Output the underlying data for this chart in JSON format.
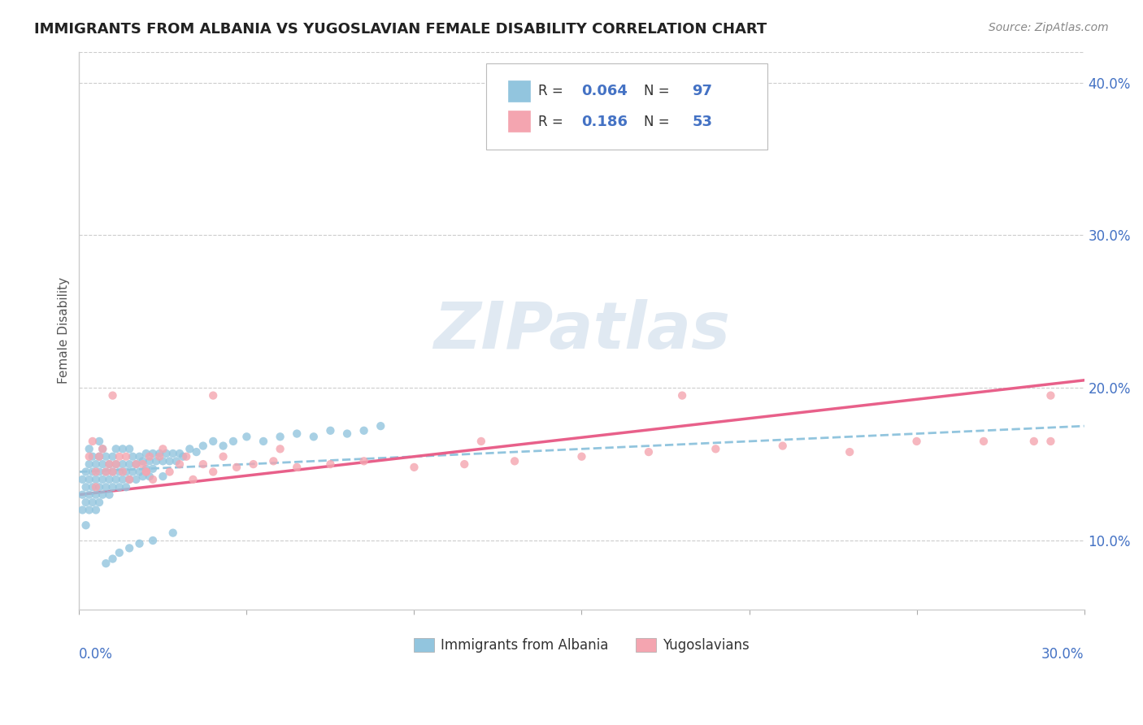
{
  "title": "IMMIGRANTS FROM ALBANIA VS YUGOSLAVIAN FEMALE DISABILITY CORRELATION CHART",
  "source": "Source: ZipAtlas.com",
  "ylabel": "Female Disability",
  "legend_label1": "Immigrants from Albania",
  "legend_label2": "Yugoslavians",
  "r1": 0.064,
  "n1": 97,
  "r2": 0.186,
  "n2": 53,
  "color1": "#92C5DE",
  "color2": "#F4A5B0",
  "trendline_color1": "#92C5DE",
  "trendline_color2": "#E8608A",
  "watermark": "ZIPatlas",
  "xlim": [
    0.0,
    0.3
  ],
  "ylim": [
    0.055,
    0.42
  ],
  "yticks": [
    0.1,
    0.2,
    0.3,
    0.4
  ],
  "ytick_labels": [
    "10.0%",
    "20.0%",
    "30.0%",
    "40.0%"
  ],
  "albania_x": [
    0.001,
    0.001,
    0.001,
    0.002,
    0.002,
    0.002,
    0.002,
    0.003,
    0.003,
    0.003,
    0.003,
    0.003,
    0.004,
    0.004,
    0.004,
    0.004,
    0.005,
    0.005,
    0.005,
    0.005,
    0.006,
    0.006,
    0.006,
    0.006,
    0.006,
    0.007,
    0.007,
    0.007,
    0.007,
    0.008,
    0.008,
    0.008,
    0.009,
    0.009,
    0.009,
    0.01,
    0.01,
    0.01,
    0.011,
    0.011,
    0.011,
    0.012,
    0.012,
    0.013,
    0.013,
    0.013,
    0.014,
    0.014,
    0.015,
    0.015,
    0.015,
    0.016,
    0.016,
    0.017,
    0.017,
    0.018,
    0.018,
    0.019,
    0.019,
    0.02,
    0.02,
    0.021,
    0.021,
    0.022,
    0.022,
    0.023,
    0.024,
    0.025,
    0.025,
    0.026,
    0.027,
    0.028,
    0.029,
    0.03,
    0.031,
    0.033,
    0.035,
    0.037,
    0.04,
    0.043,
    0.046,
    0.05,
    0.055,
    0.06,
    0.065,
    0.07,
    0.075,
    0.08,
    0.085,
    0.09,
    0.008,
    0.01,
    0.012,
    0.015,
    0.018,
    0.022,
    0.028
  ],
  "albania_y": [
    0.13,
    0.12,
    0.14,
    0.135,
    0.125,
    0.145,
    0.11,
    0.14,
    0.13,
    0.15,
    0.12,
    0.16,
    0.135,
    0.145,
    0.125,
    0.155,
    0.14,
    0.13,
    0.15,
    0.12,
    0.145,
    0.135,
    0.155,
    0.125,
    0.165,
    0.14,
    0.15,
    0.13,
    0.16,
    0.145,
    0.135,
    0.155,
    0.14,
    0.15,
    0.13,
    0.145,
    0.155,
    0.135,
    0.15,
    0.14,
    0.16,
    0.145,
    0.135,
    0.15,
    0.14,
    0.16,
    0.145,
    0.135,
    0.15,
    0.14,
    0.16,
    0.145,
    0.155,
    0.15,
    0.14,
    0.155,
    0.145,
    0.152,
    0.142,
    0.157,
    0.147,
    0.152,
    0.142,
    0.157,
    0.147,
    0.152,
    0.157,
    0.152,
    0.142,
    0.157,
    0.152,
    0.157,
    0.152,
    0.157,
    0.155,
    0.16,
    0.158,
    0.162,
    0.165,
    0.162,
    0.165,
    0.168,
    0.165,
    0.168,
    0.17,
    0.168,
    0.172,
    0.17,
    0.172,
    0.175,
    0.085,
    0.088,
    0.092,
    0.095,
    0.098,
    0.1,
    0.105
  ],
  "yugo_x": [
    0.003,
    0.004,
    0.005,
    0.005,
    0.006,
    0.007,
    0.008,
    0.009,
    0.01,
    0.011,
    0.012,
    0.013,
    0.014,
    0.015,
    0.017,
    0.019,
    0.02,
    0.021,
    0.022,
    0.024,
    0.025,
    0.027,
    0.03,
    0.032,
    0.034,
    0.037,
    0.04,
    0.043,
    0.047,
    0.052,
    0.058,
    0.065,
    0.075,
    0.085,
    0.1,
    0.115,
    0.13,
    0.15,
    0.17,
    0.19,
    0.21,
    0.23,
    0.25,
    0.27,
    0.285,
    0.29,
    0.29,
    0.18,
    0.12,
    0.06,
    0.04,
    0.02,
    0.01
  ],
  "yugo_y": [
    0.155,
    0.165,
    0.135,
    0.145,
    0.155,
    0.16,
    0.145,
    0.15,
    0.145,
    0.15,
    0.155,
    0.145,
    0.155,
    0.14,
    0.15,
    0.15,
    0.145,
    0.155,
    0.14,
    0.155,
    0.16,
    0.145,
    0.15,
    0.155,
    0.14,
    0.15,
    0.145,
    0.155,
    0.148,
    0.15,
    0.152,
    0.148,
    0.15,
    0.152,
    0.148,
    0.15,
    0.152,
    0.155,
    0.158,
    0.16,
    0.162,
    0.158,
    0.165,
    0.165,
    0.165,
    0.165,
    0.195,
    0.195,
    0.165,
    0.16,
    0.195,
    0.145,
    0.195
  ]
}
